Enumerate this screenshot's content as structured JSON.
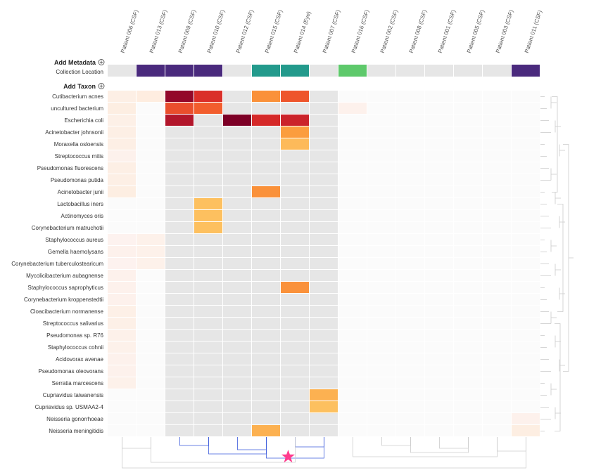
{
  "chart_data": {
    "type": "heatmap",
    "columns": [
      "Patient 006 (CSF)",
      "Patient 013 (CSF)",
      "Patient 009 (CSF)",
      "Patient 010 (CSF)",
      "Patient 012 (CSF)",
      "Patient 015 (CSF)",
      "Patient 014 (Eye)",
      "Patient 007 (CSF)",
      "Patient 016 (CSF)",
      "Patient 002 (CSF)",
      "Patient 008 (CSF)",
      "Patient 001 (CSF)",
      "Patient 005 (CSF)",
      "Patient 003 (CSF)",
      "Patient 011 (CSF)"
    ],
    "metadata_section_label": "Add Metadata",
    "taxon_section_label": "Add Taxon",
    "metadata": {
      "name": "Collection Location",
      "values": [
        null,
        "A",
        "A",
        "A",
        null,
        "B",
        "B",
        null,
        "C",
        null,
        null,
        null,
        null,
        null,
        "A"
      ],
      "colors": {
        "A": "#4a2a7d",
        "B": "#239a8c",
        "C": "#5ec96b"
      }
    },
    "rows": [
      "Cutibacterium acnes",
      "uncultured bacterium",
      "Escherichia coli",
      "Acinetobacter johnsonii",
      "Moraxella osloensis",
      "Streptococcus mitis",
      "Pseudomonas fluorescens",
      "Pseudomonas putida",
      "Acinetobacter junii",
      "Lactobacillus iners",
      "Actinomyces oris",
      "Corynebacterium matruchotii",
      "Staphylococcus aureus",
      "Gemella haemolysans",
      "Corynebacterium tuberculostearicum",
      "Mycolicibacterium aubagnense",
      "Staphylococcus saprophyticus",
      "Corynebacterium kroppenstedtii",
      "Cloacibacterium normanense",
      "Streptococcus salivarius",
      "Pseudomonas sp. R76",
      "Staphylococcus cohnii",
      "Acidovorax avenae",
      "Pseudomonas oleovorans",
      "Serratia marcescens",
      "Cupriavidus taiwanensis",
      "Cupriavidus sp. USMAA2-4",
      "Neisseria gonorrhoeae",
      "Neisseria meningitidis"
    ],
    "values": [
      [
        0.06,
        0.08,
        0.92,
        0.7,
        null,
        0.45,
        0.6,
        null,
        null,
        null,
        null,
        null,
        null,
        null,
        null
      ],
      [
        0.07,
        null,
        0.62,
        0.58,
        null,
        null,
        null,
        null,
        0.03,
        null,
        null,
        null,
        null,
        null,
        null
      ],
      [
        0.05,
        null,
        0.82,
        null,
        1.0,
        0.72,
        0.75,
        null,
        null,
        null,
        null,
        null,
        null,
        null,
        null
      ],
      [
        0.06,
        null,
        null,
        null,
        null,
        null,
        0.42,
        null,
        null,
        null,
        null,
        null,
        null,
        null,
        null
      ],
      [
        0.06,
        null,
        null,
        null,
        null,
        null,
        0.32,
        null,
        null,
        null,
        null,
        null,
        null,
        null,
        null
      ],
      [
        0.03,
        null,
        null,
        null,
        null,
        null,
        null,
        null,
        null,
        null,
        null,
        null,
        null,
        null,
        null
      ],
      [
        0.06,
        null,
        null,
        null,
        null,
        null,
        null,
        null,
        null,
        null,
        null,
        null,
        null,
        null,
        null
      ],
      [
        0.06,
        null,
        null,
        null,
        null,
        null,
        null,
        null,
        null,
        null,
        null,
        null,
        null,
        null,
        null
      ],
      [
        0.07,
        null,
        null,
        null,
        null,
        0.45,
        null,
        null,
        null,
        null,
        null,
        null,
        null,
        null,
        null
      ],
      [
        null,
        null,
        null,
        0.3,
        null,
        null,
        null,
        null,
        null,
        null,
        null,
        null,
        null,
        null,
        null
      ],
      [
        null,
        null,
        null,
        0.3,
        null,
        null,
        null,
        null,
        null,
        null,
        null,
        null,
        null,
        null,
        null
      ],
      [
        null,
        null,
        null,
        0.3,
        null,
        null,
        null,
        null,
        null,
        null,
        null,
        null,
        null,
        null,
        null
      ],
      [
        0.02,
        0.04,
        null,
        null,
        null,
        null,
        null,
        null,
        null,
        null,
        null,
        null,
        null,
        null,
        null
      ],
      [
        0.03,
        0.04,
        null,
        null,
        null,
        null,
        null,
        null,
        null,
        null,
        null,
        null,
        null,
        null,
        null
      ],
      [
        0.02,
        0.04,
        null,
        null,
        null,
        null,
        null,
        null,
        null,
        null,
        null,
        null,
        null,
        null,
        null
      ],
      [
        0.03,
        null,
        null,
        null,
        null,
        null,
        null,
        null,
        null,
        null,
        null,
        null,
        null,
        null,
        null
      ],
      [
        0.03,
        null,
        null,
        null,
        null,
        null,
        0.45,
        null,
        null,
        null,
        null,
        null,
        null,
        null,
        null
      ],
      [
        0.03,
        null,
        null,
        null,
        null,
        null,
        null,
        null,
        null,
        null,
        null,
        null,
        null,
        null,
        null
      ],
      [
        0.05,
        null,
        null,
        null,
        null,
        null,
        null,
        null,
        null,
        null,
        null,
        null,
        null,
        null,
        null
      ],
      [
        0.05,
        null,
        null,
        null,
        null,
        null,
        null,
        null,
        null,
        null,
        null,
        null,
        null,
        null,
        null
      ],
      [
        0.04,
        null,
        null,
        null,
        null,
        null,
        null,
        null,
        null,
        null,
        null,
        null,
        null,
        null,
        null
      ],
      [
        0.04,
        null,
        null,
        null,
        null,
        null,
        null,
        null,
        null,
        null,
        null,
        null,
        null,
        null,
        null
      ],
      [
        0.03,
        null,
        null,
        null,
        null,
        null,
        null,
        null,
        null,
        null,
        null,
        null,
        null,
        null,
        null
      ],
      [
        0.03,
        null,
        null,
        null,
        null,
        null,
        null,
        null,
        null,
        null,
        null,
        null,
        null,
        null,
        null
      ],
      [
        0.04,
        null,
        null,
        null,
        null,
        null,
        null,
        null,
        null,
        null,
        null,
        null,
        null,
        null,
        null
      ],
      [
        null,
        null,
        null,
        null,
        null,
        null,
        null,
        0.35,
        null,
        null,
        null,
        null,
        null,
        null,
        null
      ],
      [
        null,
        null,
        null,
        null,
        null,
        null,
        null,
        0.3,
        null,
        null,
        null,
        null,
        null,
        null,
        null
      ],
      [
        null,
        null,
        null,
        null,
        null,
        null,
        null,
        null,
        null,
        null,
        null,
        null,
        null,
        null,
        0.03
      ],
      [
        null,
        null,
        null,
        null,
        null,
        0.35,
        null,
        null,
        null,
        null,
        null,
        null,
        null,
        null,
        0.07
      ]
    ],
    "active_columns": [
      2,
      3,
      4,
      5,
      6,
      7
    ],
    "highlight_column": 6,
    "color_scale": [
      "#fdf4f4",
      "#fee8d0",
      "#fdc463",
      "#fb9a3c",
      "#f4602d",
      "#d72a29",
      "#a50f2c",
      "#7d0026"
    ],
    "empty_active_color": "#e6e6e6",
    "empty_inactive_color": "#fbfbfb",
    "metadata_empty_color": "#e6e6e6",
    "dendrogram_color": "#cccccc",
    "selected_cluster_color": "#3b5bdb",
    "marker_color": "#ff3b8d",
    "grid": false,
    "legend": "none"
  }
}
